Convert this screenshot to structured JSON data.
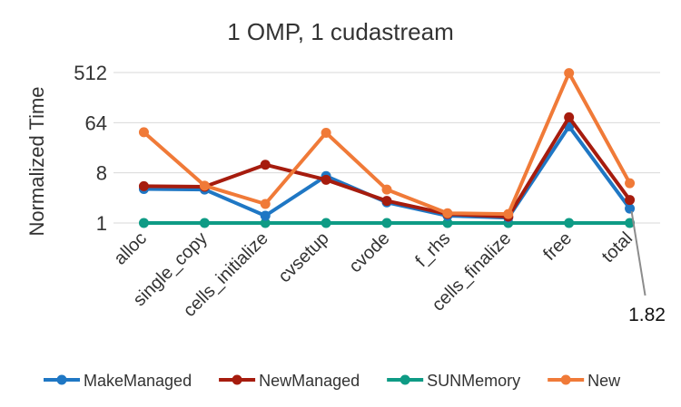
{
  "chart_data": {
    "type": "line",
    "title": "1 OMP, 1 cudastream",
    "ylabel": "Normalized Time",
    "xlabel": "",
    "y_scale": "log2",
    "ylim": [
      1,
      512
    ],
    "y_ticks": [
      1,
      8,
      64,
      512
    ],
    "y_tick_labels": [
      "1",
      "8",
      "64",
      "512"
    ],
    "grid": "horizontal",
    "legend_position": "bottom",
    "categories": [
      "alloc",
      "single_copy",
      "cells_initialize",
      "cvsetup",
      "cvode",
      "f_rhs",
      "cells_finalize",
      "free",
      "total"
    ],
    "series": [
      {
        "name": "MakeManaged",
        "color": "#1F77C4",
        "values": [
          4.1,
          4.0,
          1.35,
          7.0,
          2.35,
          1.35,
          1.25,
          55.0,
          1.82
        ]
      },
      {
        "name": "NewManaged",
        "color": "#A61C0E",
        "values": [
          4.6,
          4.5,
          11.2,
          6.0,
          2.5,
          1.45,
          1.3,
          80.0,
          2.6
        ]
      },
      {
        "name": "SUNMemory",
        "color": "#0E9B85",
        "values": [
          1.0,
          1.0,
          1.0,
          1.0,
          1.0,
          1.0,
          1.0,
          1.0,
          1.0
        ]
      },
      {
        "name": "New",
        "color": "#F07A38",
        "values": [
          43.0,
          4.7,
          2.2,
          42.0,
          4.0,
          1.5,
          1.45,
          500.0,
          5.2
        ]
      }
    ],
    "annotations": [
      {
        "text": "1.82",
        "series": "MakeManaged",
        "category": "total"
      }
    ]
  }
}
